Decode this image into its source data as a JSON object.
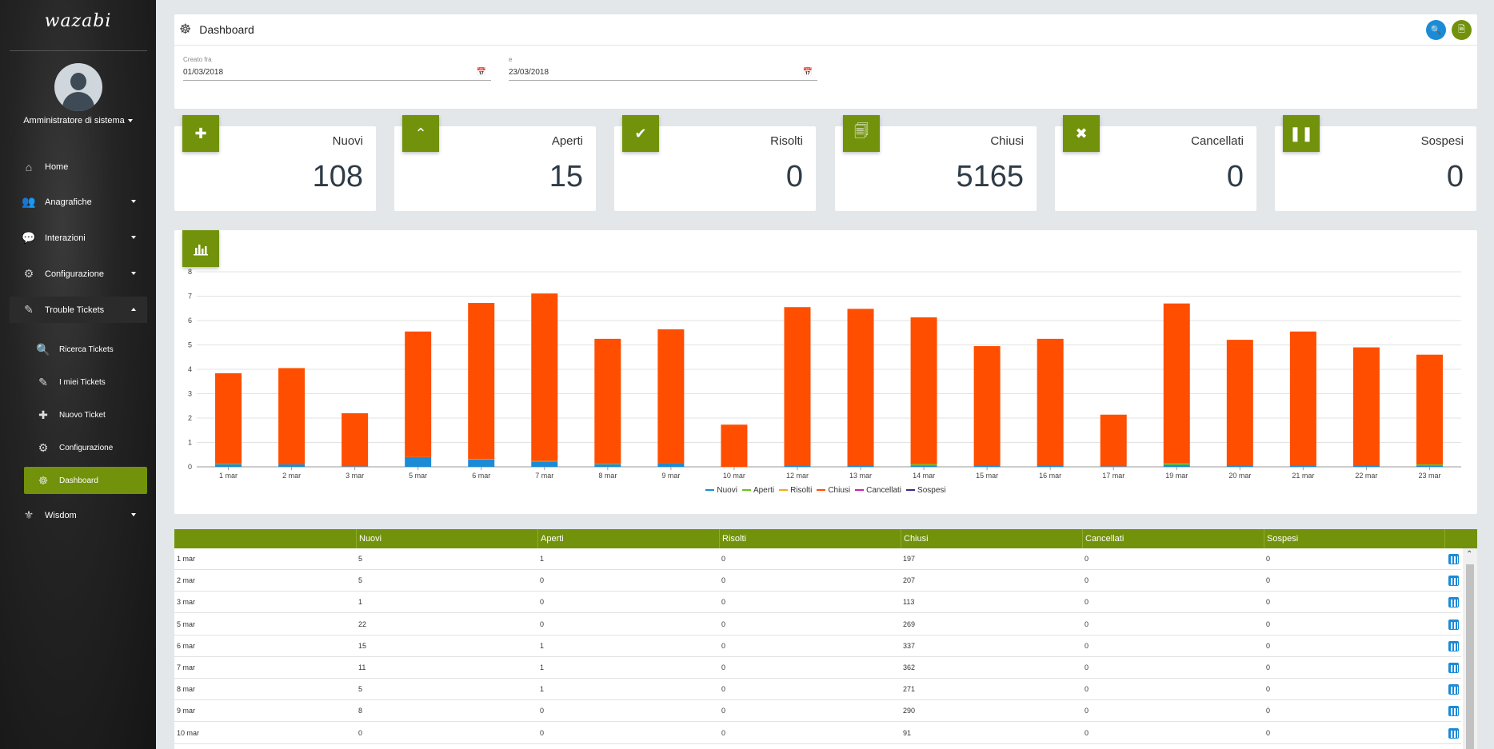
{
  "sidebar": {
    "logo": "wazabi",
    "user": "Amministratore di sistema",
    "items": [
      {
        "label": "Home",
        "icon": "home-icon",
        "glyph": "⌂"
      },
      {
        "label": "Anagrafiche",
        "icon": "users-icon",
        "glyph": "👥"
      },
      {
        "label": "Interazioni",
        "icon": "chat-icon",
        "glyph": "💬"
      },
      {
        "label": "Configurazione",
        "icon": "gear-icon",
        "glyph": "⚙"
      },
      {
        "label": "Trouble Tickets",
        "icon": "ticket-icon",
        "glyph": "✎"
      },
      {
        "label": "Wisdom",
        "icon": "wisdom-icon",
        "glyph": "⚜"
      }
    ],
    "subitems": [
      {
        "label": "Ricerca Tickets",
        "icon": "search-icon",
        "glyph": "🔍"
      },
      {
        "label": "I miei Tickets",
        "icon": "ticket-icon",
        "glyph": "✎"
      },
      {
        "label": "Nuovo Ticket",
        "icon": "plus-icon",
        "glyph": "✚"
      },
      {
        "label": "Configurazione",
        "icon": "gears-icon",
        "glyph": "⚙"
      },
      {
        "label": "Dashboard",
        "icon": "dashboard-icon",
        "glyph": "☸"
      }
    ]
  },
  "header": {
    "title": "Dashboard",
    "from_label": "Creato fra",
    "from_value": "01/03/2018",
    "to_label": "e",
    "to_value": "23/03/2018"
  },
  "colors": {
    "accent": "#71920a",
    "search_button": "#1b8bd6",
    "export_button": "#71920a"
  },
  "stats": [
    {
      "label": "Nuovi",
      "value": "108",
      "icon": "plus-icon",
      "glyph": "✚"
    },
    {
      "label": "Aperti",
      "value": "15",
      "icon": "chevron-up-icon",
      "glyph": "⌃"
    },
    {
      "label": "Risolti",
      "value": "0",
      "icon": "check-icon",
      "glyph": "✔"
    },
    {
      "label": "Chiusi",
      "value": "5165",
      "icon": "document-icon",
      "glyph": "🗐"
    },
    {
      "label": "Cancellati",
      "value": "0",
      "icon": "close-icon",
      "glyph": "✖"
    },
    {
      "label": "Sospesi",
      "value": "0",
      "icon": "pause-icon",
      "glyph": "❚❚"
    }
  ],
  "chart_data": {
    "type": "bar",
    "stacked": true,
    "categories": [
      "1 mar",
      "2 mar",
      "3 mar",
      "5 mar",
      "6 mar",
      "7 mar",
      "8 mar",
      "9 mar",
      "10 mar",
      "12 mar",
      "13 mar",
      "14 mar",
      "15 mar",
      "16 mar",
      "17 mar",
      "19 mar",
      "20 mar",
      "21 mar",
      "22 mar",
      "23 mar"
    ],
    "ylim": [
      0,
      8
    ],
    "yticks": [
      "0",
      "1",
      "2",
      "3",
      "4",
      "5",
      "6",
      "7",
      "8"
    ],
    "legend_position": "bottom",
    "grid": true,
    "series": [
      {
        "name": "Nuovi",
        "color": "#1b8bd6",
        "values": [
          0.1,
          0.1,
          0.02,
          0.4,
          0.3,
          0.22,
          0.1,
          0.16,
          0.0,
          0.05,
          0.05,
          0.05,
          0.05,
          0.05,
          0.02,
          0.08,
          0.05,
          0.05,
          0.05,
          0.05
        ]
      },
      {
        "name": "Aperti",
        "color": "#6cc01e",
        "values": [
          0.02,
          0.0,
          0.0,
          0.0,
          0.02,
          0.02,
          0.02,
          0.0,
          0.0,
          0.0,
          0.0,
          0.06,
          0.0,
          0.0,
          0.0,
          0.06,
          0.0,
          0.0,
          0.0,
          0.05
        ]
      },
      {
        "name": "Risolti",
        "color": "#f5a623",
        "values": [
          0,
          0,
          0,
          0,
          0,
          0,
          0,
          0,
          0,
          0,
          0,
          0,
          0,
          0,
          0,
          0,
          0,
          0,
          0,
          0
        ]
      },
      {
        "name": "Chiusi",
        "color": "#ff4e00",
        "values": [
          3.72,
          3.95,
          2.18,
          5.15,
          6.4,
          6.87,
          5.13,
          5.48,
          1.73,
          6.5,
          6.43,
          6.02,
          4.9,
          5.2,
          2.12,
          6.56,
          5.16,
          5.5,
          4.85,
          4.5
        ]
      },
      {
        "name": "Cancellati",
        "color": "#cc1fb7",
        "values": [
          0,
          0,
          0,
          0,
          0,
          0,
          0,
          0,
          0,
          0,
          0,
          0,
          0,
          0,
          0,
          0,
          0,
          0,
          0,
          0
        ]
      },
      {
        "name": "Sospesi",
        "color": "#3b2a8c",
        "values": [
          0,
          0,
          0,
          0,
          0,
          0,
          0,
          0,
          0,
          0,
          0,
          0,
          0,
          0,
          0,
          0,
          0,
          0,
          0,
          0
        ]
      }
    ]
  },
  "table": {
    "columns": [
      "",
      "Nuovi",
      "Aperti",
      "Risolti",
      "Chiusi",
      "Cancellati",
      "Sospesi",
      ""
    ],
    "rows": [
      [
        "1 mar",
        "5",
        "1",
        "0",
        "197",
        "0",
        "0"
      ],
      [
        "2 mar",
        "5",
        "0",
        "0",
        "207",
        "0",
        "0"
      ],
      [
        "3 mar",
        "1",
        "0",
        "0",
        "113",
        "0",
        "0"
      ],
      [
        "5 mar",
        "22",
        "0",
        "0",
        "269",
        "0",
        "0"
      ],
      [
        "6 mar",
        "15",
        "1",
        "0",
        "337",
        "0",
        "0"
      ],
      [
        "7 mar",
        "11",
        "1",
        "0",
        "362",
        "0",
        "0"
      ],
      [
        "8 mar",
        "5",
        "1",
        "0",
        "271",
        "0",
        "0"
      ],
      [
        "9 mar",
        "8",
        "0",
        "0",
        "290",
        "0",
        "0"
      ],
      [
        "10 mar",
        "0",
        "0",
        "0",
        "91",
        "0",
        "0"
      ]
    ]
  }
}
